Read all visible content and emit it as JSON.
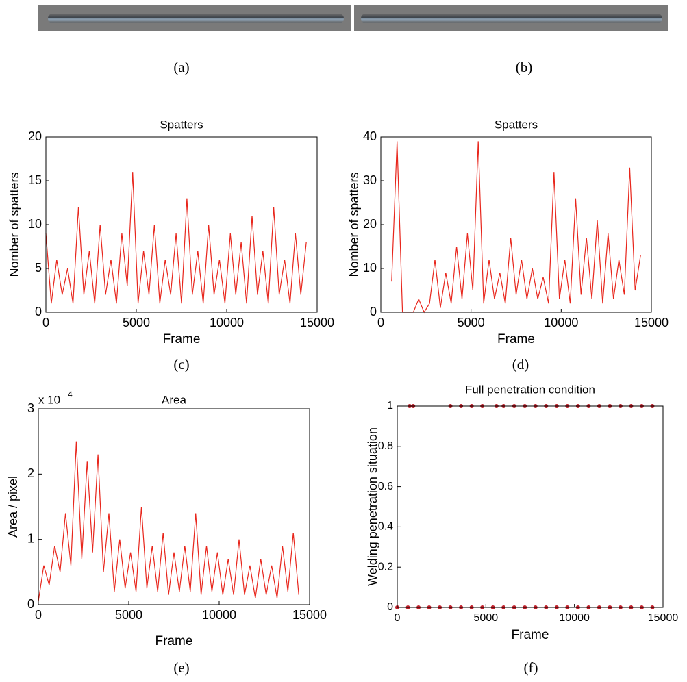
{
  "panels": [
    "(a)",
    "(b)",
    "(c)",
    "(d)",
    "(e)",
    "(f)"
  ],
  "chart_data": [
    {
      "type": "line",
      "title": "Spatters",
      "x_label": "Frame",
      "y_label": "Nomber of spatters",
      "color": "#e8261c",
      "x": [
        0,
        300,
        600,
        900,
        1200,
        1500,
        1800,
        2100,
        2400,
        2700,
        3000,
        3300,
        3600,
        3900,
        4200,
        4500,
        4800,
        5100,
        5400,
        5700,
        6000,
        6300,
        6600,
        6900,
        7200,
        7500,
        7800,
        8100,
        8400,
        8700,
        9000,
        9300,
        9600,
        9900,
        10200,
        10500,
        10800,
        11100,
        11400,
        11700,
        12000,
        12300,
        12600,
        12900,
        13200,
        13500,
        13800,
        14100,
        14400
      ],
      "values": [
        9,
        1,
        6,
        2,
        5,
        1,
        12,
        2,
        7,
        1,
        10,
        2,
        6,
        1,
        9,
        3,
        16,
        1,
        7,
        2,
        10,
        1,
        6,
        2,
        9,
        1,
        13,
        2,
        7,
        1,
        10,
        2,
        6,
        1,
        9,
        2,
        8,
        1,
        11,
        2,
        7,
        1,
        12,
        2,
        6,
        1,
        9,
        2,
        8
      ],
      "xlim": [
        0,
        15000
      ],
      "xticks": [
        0,
        5000,
        10000,
        15000
      ],
      "ylim": [
        0,
        20
      ],
      "yticks": [
        0,
        5,
        10,
        15,
        20
      ]
    },
    {
      "type": "line",
      "title": "Spatters",
      "x_label": "Frame",
      "y_label": "Nomber of spatters",
      "color": "#e8261c",
      "x": [
        0,
        300,
        600,
        900,
        1200,
        1500,
        1800,
        2100,
        2400,
        2700,
        3000,
        3300,
        3600,
        3900,
        4200,
        4500,
        4800,
        5100,
        5400,
        5700,
        6000,
        6300,
        6600,
        6900,
        7200,
        7500,
        7800,
        8100,
        8400,
        8700,
        9000,
        9300,
        9600,
        9900,
        10200,
        10500,
        10800,
        11100,
        11400,
        11700,
        12000,
        12300,
        12600,
        12900,
        13200,
        13500,
        13800,
        14100,
        14400
      ],
      "values": [
        null,
        null,
        7,
        39,
        0,
        0,
        0,
        3,
        0,
        2,
        12,
        1,
        9,
        2,
        15,
        3,
        18,
        5,
        39,
        2,
        12,
        3,
        9,
        2,
        17,
        4,
        12,
        3,
        10,
        3,
        8,
        2,
        32,
        3,
        12,
        2,
        26,
        4,
        17,
        3,
        21,
        2,
        18,
        3,
        12,
        4,
        33,
        5,
        13
      ],
      "xlim": [
        0,
        15000
      ],
      "xticks": [
        0,
        5000,
        10000,
        15000
      ],
      "ylim": [
        0,
        40
      ],
      "yticks": [
        0,
        10,
        20,
        30,
        40
      ]
    },
    {
      "type": "line",
      "title": "Area",
      "x_label": "Frame",
      "y_label": "Area / pixel",
      "color": "#e8261c",
      "y_multiplier": "x 10",
      "y_multiplier_exponent": "4",
      "x": [
        0,
        300,
        600,
        900,
        1200,
        1500,
        1800,
        2100,
        2400,
        2700,
        3000,
        3300,
        3600,
        3900,
        4200,
        4500,
        4800,
        5100,
        5400,
        5700,
        6000,
        6300,
        6600,
        6900,
        7200,
        7500,
        7800,
        8100,
        8400,
        8700,
        9000,
        9300,
        9600,
        9900,
        10200,
        10500,
        10800,
        11100,
        11400,
        11700,
        12000,
        12300,
        12600,
        12900,
        13200,
        13500,
        13800,
        14100,
        14400
      ],
      "values": [
        500,
        6000,
        3000,
        9000,
        5000,
        14000,
        6000,
        25000,
        7000,
        22000,
        8000,
        23000,
        5000,
        14000,
        2000,
        10000,
        2500,
        8000,
        2000,
        15000,
        2500,
        9000,
        2000,
        11000,
        1500,
        8000,
        2000,
        9000,
        2000,
        14000,
        1500,
        9000,
        2000,
        8000,
        1500,
        7000,
        1500,
        10000,
        1500,
        6000,
        1000,
        7000,
        1500,
        6000,
        1000,
        9000,
        2000,
        11000,
        1500
      ],
      "xlim": [
        0,
        15000
      ],
      "xticks": [
        0,
        5000,
        10000,
        15000
      ],
      "ylim": [
        0,
        30000
      ],
      "yticks": [
        0,
        {
          "value": 10000,
          "label": "1"
        },
        {
          "value": 20000,
          "label": "2"
        },
        {
          "value": 30000,
          "label": "3"
        }
      ]
    },
    {
      "type": "scatter",
      "title": "Full penetration condition",
      "x_label": "Frame",
      "y_label": "Welding penetration situation",
      "color": "#c0202a",
      "x": [
        0,
        600,
        1200,
        1800,
        2400,
        3000,
        3600,
        4200,
        4800,
        5400,
        6000,
        6600,
        7200,
        7800,
        8400,
        9000,
        9600,
        10200,
        10800,
        11400,
        12000,
        12600,
        13200,
        13800,
        14400,
        700,
        900,
        3000,
        3600,
        4200,
        4800,
        5600,
        6000,
        6600,
        7200,
        7800,
        8400,
        9000,
        9600,
        10200,
        10800,
        11400,
        12000,
        12600,
        13200,
        13800,
        14400
      ],
      "values": [
        0,
        0,
        0,
        0,
        0,
        0,
        0,
        0,
        0,
        0,
        0,
        0,
        0,
        0,
        0,
        0,
        0,
        0,
        0,
        0,
        0,
        0,
        0,
        0,
        0,
        1,
        1,
        1,
        1,
        1,
        1,
        1,
        1,
        1,
        1,
        1,
        1,
        1,
        1,
        1,
        1,
        1,
        1,
        1,
        1,
        1,
        1
      ],
      "xlim": [
        0,
        15000
      ],
      "xticks": [
        0,
        5000,
        10000,
        15000
      ],
      "ylim": [
        0,
        1
      ],
      "yticks": [
        0,
        0.2,
        0.4,
        0.6,
        0.8,
        1
      ]
    }
  ]
}
